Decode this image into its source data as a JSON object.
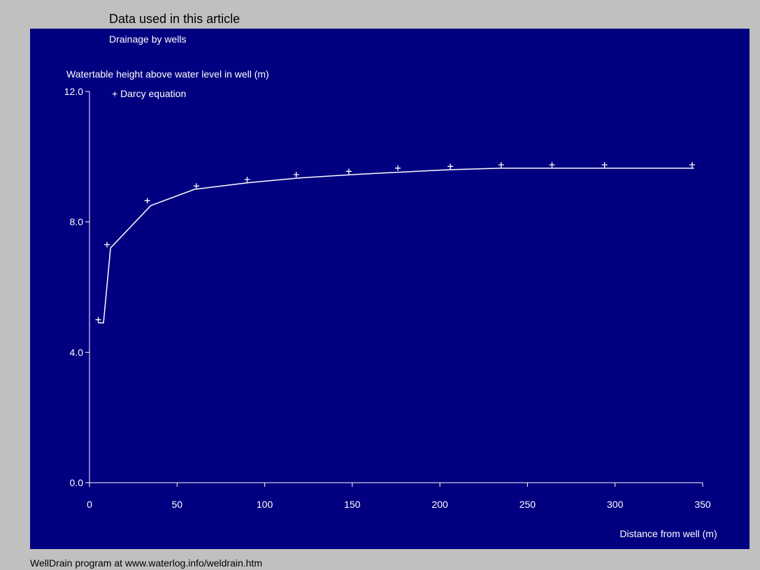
{
  "header": {
    "title": "Data used in this article"
  },
  "footer": {
    "note": "WellDrain program at www.waterlog.info/weldrain.htm"
  },
  "colors": {
    "background": "#c0c0c0",
    "plot_background": "#000080",
    "foreground": "#ffffff"
  },
  "chart_data": {
    "type": "line",
    "title": "Drainage by wells",
    "ylabel": "Watertable height above water level in well (m)",
    "xlabel": "Distance from well (m)",
    "xlim": [
      0,
      350
    ],
    "ylim": [
      0,
      12
    ],
    "x_ticks": [
      0,
      50,
      100,
      150,
      200,
      250,
      300,
      350
    ],
    "x_tick_labels": [
      "0",
      "50",
      "100",
      "150",
      "200",
      "250",
      "300",
      "350"
    ],
    "y_ticks": [
      0,
      4,
      8,
      12
    ],
    "y_tick_labels": [
      "0.0",
      "4.0",
      "8.0",
      "12.0"
    ],
    "grid": false,
    "legend": "top-left",
    "series": [
      {
        "name": "",
        "marker": "none",
        "x": [
          5,
          8,
          12,
          35,
          60,
          90,
          120,
          150,
          175,
          205,
          235,
          265,
          295,
          345
        ],
        "y": [
          4.9,
          4.9,
          7.2,
          8.5,
          9.0,
          9.2,
          9.35,
          9.45,
          9.52,
          9.6,
          9.65,
          9.65,
          9.65,
          9.65
        ]
      },
      {
        "name": "+ Darcy equation",
        "marker": "+",
        "x": [
          5,
          10,
          33,
          61,
          90,
          118,
          148,
          176,
          206,
          235,
          264,
          294,
          344
        ],
        "y": [
          5.0,
          7.3,
          8.65,
          9.1,
          9.3,
          9.45,
          9.55,
          9.65,
          9.7,
          9.75,
          9.75,
          9.75,
          9.75
        ]
      }
    ]
  }
}
